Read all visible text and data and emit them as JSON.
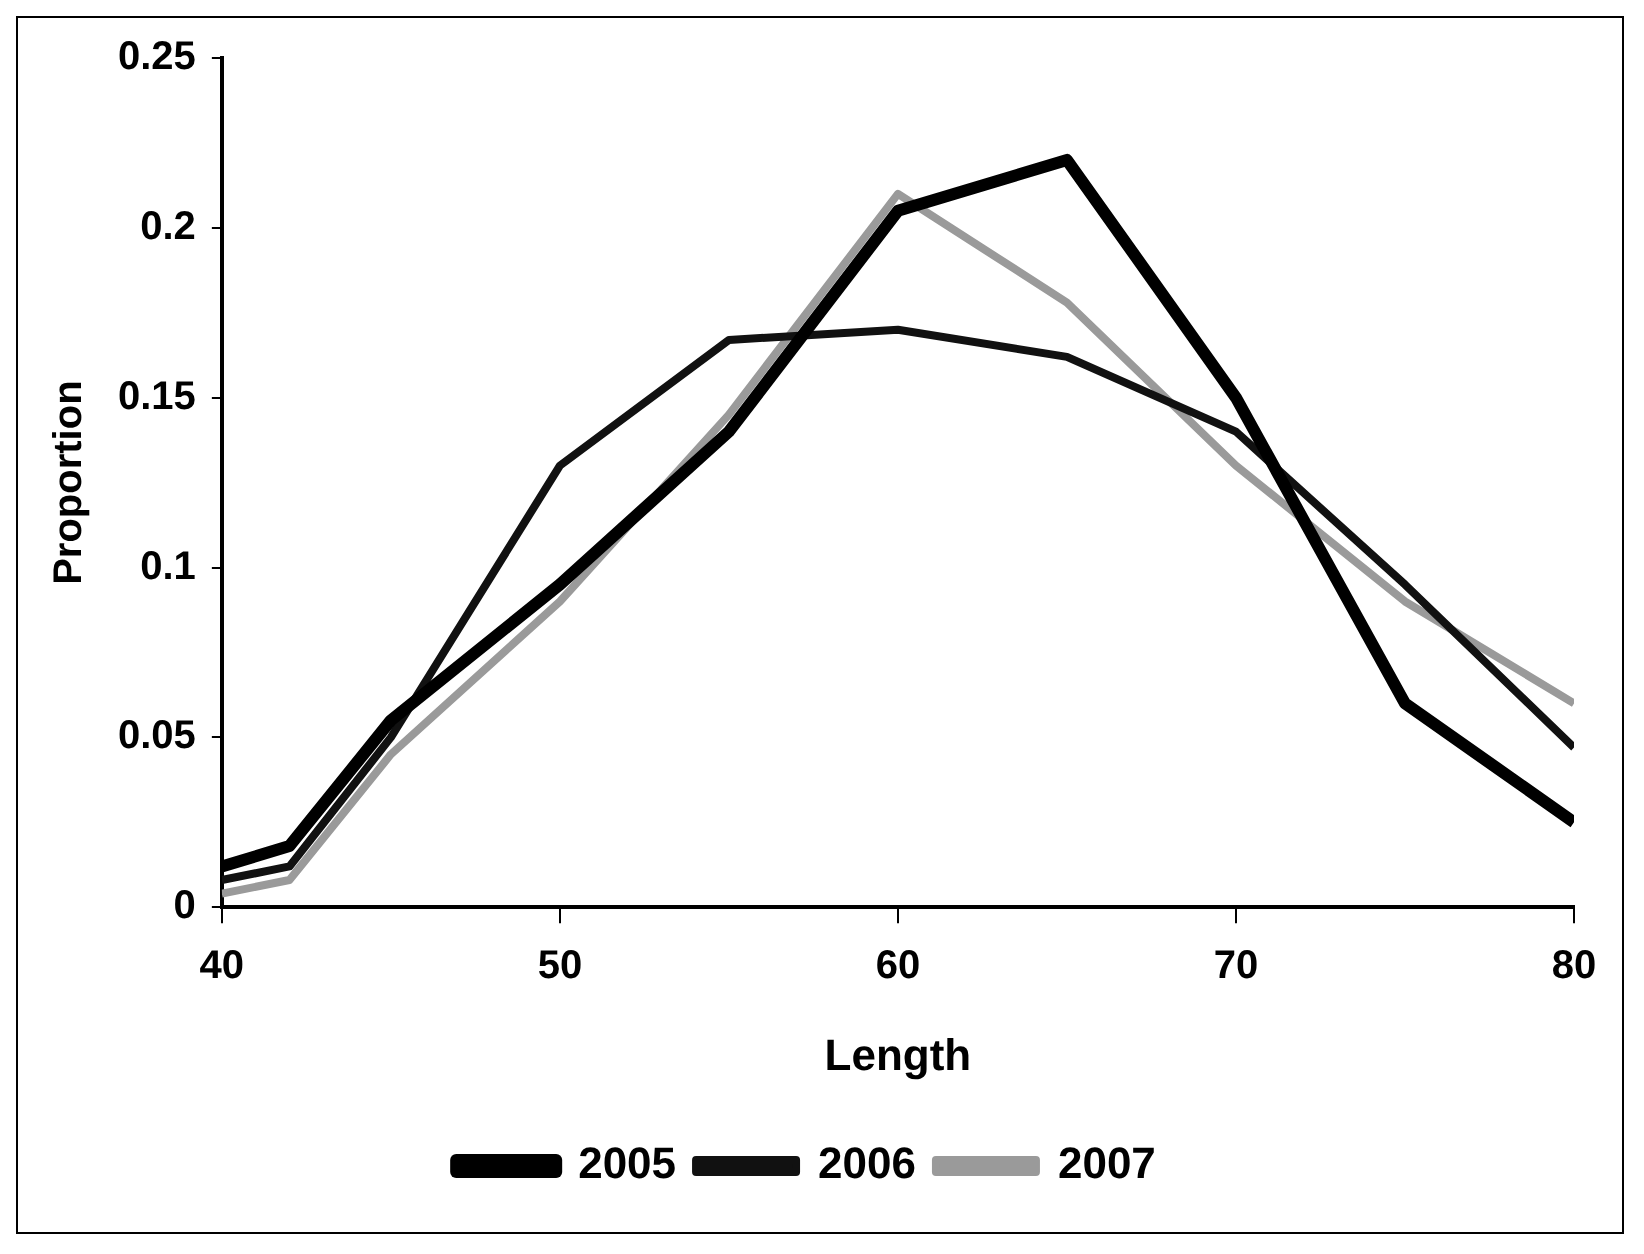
{
  "chart_data": {
    "type": "line",
    "xlabel": "Length",
    "ylabel": "Proportion",
    "x": [
      40,
      42,
      45,
      50,
      55,
      60,
      65,
      70,
      75,
      80
    ],
    "series": [
      {
        "name": "2005",
        "color": "#000000",
        "values": [
          0.012,
          0.018,
          0.055,
          0.095,
          0.14,
          0.205,
          0.22,
          0.15,
          0.06,
          0.025
        ]
      },
      {
        "name": "2006",
        "color": "#111111",
        "values": [
          0.008,
          0.012,
          0.05,
          0.13,
          0.167,
          0.17,
          0.162,
          0.14,
          0.095,
          0.047
        ]
      },
      {
        "name": "2007",
        "color": "#9a9a9a",
        "values": [
          0.004,
          0.008,
          0.045,
          0.09,
          0.145,
          0.21,
          0.178,
          0.13,
          0.09,
          0.06
        ]
      }
    ],
    "xlim": [
      40,
      80
    ],
    "xticks": [
      40,
      50,
      60,
      70,
      80
    ],
    "ylim": [
      0,
      0.25
    ],
    "yticks": [
      0,
      0.05,
      0.1,
      0.15,
      0.2,
      0.25
    ],
    "grid": false,
    "legend": "bottom",
    "marker": "none",
    "line_style": "solid"
  }
}
